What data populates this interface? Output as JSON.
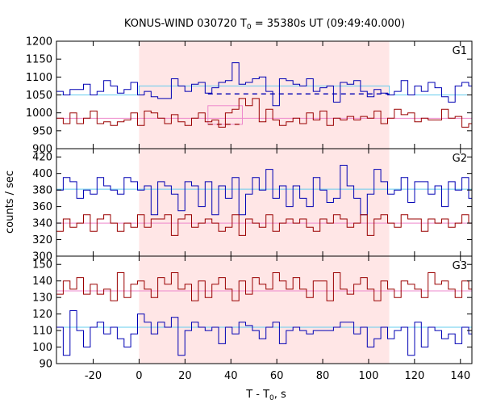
{
  "chart_data": {
    "type": "line",
    "title_main": "KONUS-WIND 030720 T",
    "title_sub": "0",
    "title_tail": " = 35380s UT (09:49:40.000)",
    "xlabel_main": "T - T",
    "xlabel_sub": "0",
    "xlabel_tail": ", s",
    "ylabel": "counts / sec",
    "xlim": [
      -36,
      145
    ],
    "xticks": [
      -20,
      0,
      20,
      40,
      60,
      80,
      100,
      120,
      140
    ],
    "bin_width": 2.944,
    "bin_start": -36,
    "shaded_interval": [
      0,
      109
    ],
    "colors": {
      "shade": "#ffe6e6",
      "blue": "#0000b4",
      "red": "#9a0000",
      "bg_blue": "#66ccee",
      "bg_red": "#ee88cc",
      "frame": "#000000"
    },
    "panels": [
      {
        "label": "G1",
        "ylim": [
          900,
          1200
        ],
        "yticks": [
          900,
          950,
          1000,
          1050,
          1100,
          1150,
          1200
        ],
        "background_levels": [
          {
            "series": "blue",
            "segments": [
              [
                -36,
                0,
                1050
              ],
              [
                0,
                109,
                1075
              ],
              [
                109,
                145,
                1050
              ]
            ]
          },
          {
            "series": "red",
            "segments": [
              [
                -36,
                0,
                985
              ],
              [
                0,
                109,
                985
              ],
              [
                109,
                145,
                985
              ]
            ]
          }
        ],
        "dashed_levels": [
          {
            "series": "blue",
            "x": [
              30,
              109
            ],
            "y": 1053
          },
          {
            "series": "red",
            "x": [
              30,
              45
            ],
            "y": 968
          }
        ],
        "highlight_rect": {
          "series": "bg_red",
          "x": [
            30,
            45
          ],
          "y": [
            968,
            1020
          ]
        },
        "series": [
          {
            "color": "blue",
            "values": [
              1060,
              1050,
              1065,
              1065,
              1080,
              1050,
              1060,
              1090,
              1075,
              1055,
              1065,
              1085,
              1050,
              1060,
              1045,
              1040,
              1040,
              1095,
              1075,
              1060,
              1080,
              1085,
              1055,
              1070,
              1085,
              1090,
              1140,
              1080,
              1085,
              1095,
              1100,
              1060,
              1020,
              1095,
              1090,
              1080,
              1075,
              1095,
              1060,
              1070,
              1075,
              1030,
              1085,
              1080,
              1090,
              1060,
              1045,
              1065,
              1055,
              1050,
              1060,
              1090,
              1050,
              1075,
              1060,
              1085,
              1070,
              1045,
              1030,
              1075,
              1085,
              1075,
              1065
            ]
          },
          {
            "color": "red",
            "values": [
              985,
              970,
              1000,
              970,
              985,
              1005,
              970,
              975,
              965,
              975,
              980,
              1000,
              965,
              1005,
              1000,
              985,
              970,
              995,
              975,
              965,
              985,
              1000,
              975,
              980,
              960,
              1000,
              1010,
              1040,
              1020,
              1040,
              975,
              1010,
              980,
              965,
              975,
              985,
              970,
              1000,
              980,
              1005,
              965,
              985,
              980,
              990,
              980,
              990,
              985,
              1005,
              970,
              985,
              1010,
              995,
              1000,
              975,
              985,
              980,
              980,
              1010,
              985,
              990,
              960,
              970,
              985
            ]
          }
        ]
      },
      {
        "label": "G2",
        "ylim": [
          300,
          430
        ],
        "yticks": [
          300,
          320,
          340,
          360,
          380,
          400,
          420
        ],
        "background_levels": [
          {
            "series": "blue",
            "segments": [
              [
                -36,
                145,
                381
              ]
            ]
          },
          {
            "series": "red",
            "segments": [
              [
                -36,
                145,
                340
              ]
            ]
          }
        ],
        "series": [
          {
            "color": "blue",
            "values": [
              380,
              395,
              390,
              370,
              380,
              375,
              395,
              385,
              380,
              375,
              395,
              390,
              380,
              385,
              350,
              390,
              385,
              375,
              355,
              390,
              385,
              360,
              390,
              350,
              385,
              370,
              395,
              350,
              375,
              395,
              380,
              405,
              370,
              385,
              360,
              385,
              370,
              360,
              395,
              380,
              365,
              370,
              410,
              385,
              370,
              350,
              375,
              405,
              390,
              375,
              380,
              395,
              365,
              390,
              390,
              375,
              385,
              360,
              390,
              380,
              395,
              370,
              380
            ]
          },
          {
            "color": "red",
            "values": [
              330,
              345,
              335,
              340,
              350,
              330,
              345,
              350,
              340,
              330,
              340,
              335,
              350,
              335,
              345,
              345,
              350,
              325,
              345,
              350,
              335,
              340,
              345,
              340,
              330,
              335,
              350,
              325,
              345,
              340,
              335,
              350,
              330,
              340,
              345,
              340,
              345,
              335,
              330,
              345,
              340,
              350,
              345,
              335,
              340,
              350,
              325,
              345,
              350,
              340,
              335,
              350,
              345,
              345,
              330,
              345,
              340,
              345,
              335,
              340,
              350,
              340,
              345
            ]
          }
        ]
      },
      {
        "label": "G3",
        "ylim": [
          90,
          155
        ],
        "yticks": [
          90,
          100,
          110,
          120,
          130,
          140,
          150
        ],
        "background_levels": [
          {
            "series": "blue",
            "segments": [
              [
                -36,
                145,
                112
              ]
            ]
          },
          {
            "series": "red",
            "segments": [
              [
                -36,
                145,
                134
              ]
            ]
          }
        ],
        "series": [
          {
            "color": "blue",
            "values": [
              112,
              95,
              122,
              110,
              100,
              112,
              115,
              108,
              112,
              105,
              100,
              108,
              120,
              115,
              108,
              115,
              112,
              118,
              95,
              110,
              115,
              112,
              110,
              112,
              102,
              112,
              108,
              115,
              113,
              110,
              105,
              112,
              115,
              102,
              110,
              112,
              110,
              108,
              110,
              110,
              110,
              112,
              115,
              115,
              108,
              112,
              100,
              105,
              112,
              105,
              110,
              112,
              95,
              115,
              100,
              112,
              110,
              105,
              108,
              102,
              112,
              108,
              112
            ]
          },
          {
            "color": "red",
            "values": [
              132,
              140,
              135,
              142,
              132,
              138,
              132,
              135,
              128,
              145,
              130,
              138,
              140,
              135,
              130,
              142,
              138,
              145,
              135,
              138,
              128,
              140,
              130,
              138,
              142,
              135,
              128,
              140,
              132,
              142,
              138,
              135,
              145,
              140,
              135,
              142,
              135,
              130,
              140,
              140,
              128,
              145,
              135,
              132,
              138,
              142,
              135,
              128,
              140,
              135,
              130,
              140,
              138,
              135,
              130,
              145,
              138,
              140,
              135,
              130,
              140,
              135,
              132
            ]
          }
        ]
      }
    ]
  }
}
